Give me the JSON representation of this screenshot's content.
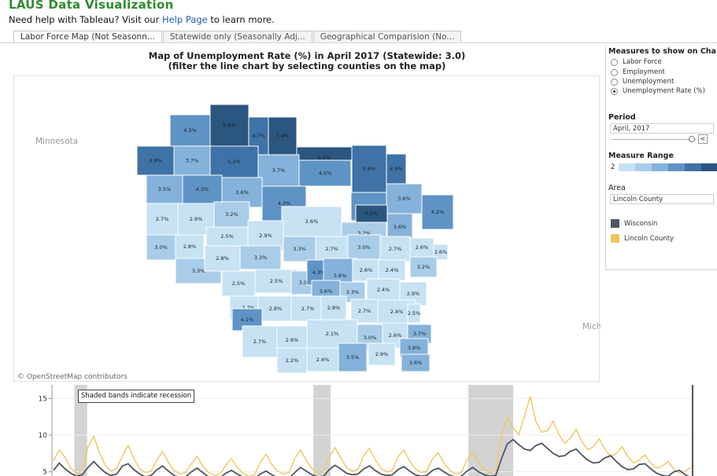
{
  "header": {
    "title": "LAUS Data Visualization",
    "help_prefix": "Need help with Tableau? Visit our",
    "help_link": "Help Page",
    "help_suffix": "to learn more."
  },
  "tabs": [
    {
      "label": "Labor Force Map (Not Seasonn...",
      "active": true
    },
    {
      "label": "Statewide only (Seasonally Adj...",
      "active": false
    },
    {
      "label": "Geographical Comparision (No...",
      "active": false
    }
  ],
  "map": {
    "title_line1": "Map of Unemployment Rate (%) in April 2017 (Statewide: 3.0)",
    "title_line2": "(filter the line chart by selecting counties on the map)",
    "label_minnesota": "Minnesota",
    "label_michigan": "Mich",
    "attribution": "© OpenStreetMap contributors",
    "county_values": [
      "4.3%",
      "6.8%",
      "4.7%",
      "7.4%",
      "6.4%",
      "5.6%",
      "4.9%",
      "4.9%",
      "3.7%",
      "5.1%",
      "3.7%",
      "4.0%",
      "4.3%",
      "3.6%",
      "3.5%",
      "4.3%",
      "3.6%",
      "4.3%",
      "2.7%",
      "2.9%",
      "3.2%",
      "2.6%",
      "6.5%",
      "3.6%",
      "4.2%",
      "3.0%",
      "2.8%",
      "2.5%",
      "2.9%",
      "3.2%",
      "3.3%",
      "2.8%",
      "3.3%",
      "3.3%",
      "2.7%",
      "3.0%",
      "2.7%",
      "2.6%",
      "2.6%",
      "2.5%",
      "2.5%",
      "3.0%",
      "4.3%",
      "3.6%",
      "2.6%",
      "2.4%",
      "3.2%",
      "3.6%",
      "3.3%",
      "2.4%",
      "2.9%",
      "2.7%",
      "2.8%",
      "2.7%",
      "2.8%",
      "2.7%",
      "2.4%",
      "2.5%",
      "4.1%",
      "2.1%",
      "2.6%",
      "3.0%",
      "2.6%",
      "3.7%",
      "2.7%",
      "2.2%",
      "2.4%",
      "3.5%",
      "2.9%",
      "3.8%",
      "3.6%"
    ],
    "color_scale": [
      "#c6e2f3",
      "#a9cde8",
      "#84b2da",
      "#5f93c6",
      "#3f72a6",
      "#2b567f"
    ]
  },
  "panel": {
    "measures_title": "Measures to show on Cha",
    "measures": [
      {
        "label": "Labor Force",
        "selected": false
      },
      {
        "label": "Employment",
        "selected": false
      },
      {
        "label": "Unemployment",
        "selected": false
      },
      {
        "label": "Unemployment Rate (%)",
        "selected": true
      }
    ],
    "period_title": "Period",
    "period_value": "April, 2017",
    "slider_btn": "<",
    "range_title": "Measure Range",
    "range_min": "2",
    "area_title": "Area",
    "area_value": "Lincoln County",
    "legend": [
      {
        "label": "Wisconsin",
        "color": "#4d5563"
      },
      {
        "label": "Lincoln County",
        "color": "#f0c75e"
      }
    ]
  },
  "chart_data": {
    "type": "line",
    "ylabel": "",
    "yticks": [
      15,
      10,
      5
    ],
    "ylim": [
      4,
      16
    ],
    "annotation": "Shaded bands indicate recession",
    "recession_bands": [
      [
        0.035,
        0.055
      ],
      [
        0.408,
        0.435
      ],
      [
        0.65,
        0.72
      ]
    ],
    "series": [
      {
        "name": "Wisconsin",
        "color": "#4d5563",
        "values": [
          5.2,
          6.2,
          5.4,
          4.8,
          4.4,
          4.6,
          5.6,
          6.4,
          5.6,
          4.9,
          4.5,
          4.7,
          5.8,
          6.1,
          5.3,
          4.7,
          4.3,
          4.5,
          5.3,
          5.8,
          5.1,
          4.5,
          4.2,
          4.3,
          5.0,
          5.5,
          4.9,
          4.3,
          4.1,
          4.2,
          4.8,
          5.2,
          4.7,
          4.3,
          4.0,
          4.1,
          4.7,
          5.1,
          4.6,
          4.2,
          4.0,
          4.1,
          4.9,
          5.6,
          5.1,
          4.6,
          4.3,
          4.4,
          5.3,
          5.9,
          5.4,
          4.8,
          4.6,
          4.7,
          5.4,
          5.8,
          5.2,
          4.7,
          4.5,
          4.6,
          5.3,
          5.7,
          5.1,
          4.6,
          4.4,
          4.5,
          5.2,
          5.5,
          5.0,
          4.5,
          4.3,
          4.4,
          5.1,
          5.6,
          5.0,
          4.6,
          4.4,
          4.5,
          6.8,
          8.8,
          9.4,
          8.7,
          8.1,
          7.9,
          8.6,
          8.9,
          8.2,
          7.5,
          7.1,
          7.2,
          7.8,
          8.1,
          7.3,
          6.6,
          6.2,
          6.3,
          6.9,
          7.2,
          6.4,
          5.7,
          5.3,
          5.4,
          6.0,
          6.1,
          5.4,
          4.8,
          4.5,
          4.4,
          5.0,
          5.2,
          4.6,
          4.2
        ]
      },
      {
        "name": "Lincoln County",
        "color": "#f0c75e",
        "values": [
          6.5,
          8.0,
          7.0,
          5.5,
          4.8,
          5.2,
          8.4,
          9.8,
          7.6,
          5.9,
          5.1,
          5.5,
          7.2,
          8.6,
          6.8,
          5.4,
          4.9,
          5.1,
          6.6,
          7.8,
          6.3,
          5.2,
          4.7,
          4.9,
          6.1,
          7.1,
          5.8,
          4.9,
          4.5,
          4.7,
          5.9,
          6.8,
          5.6,
          4.8,
          4.4,
          4.6,
          6.3,
          7.4,
          6.0,
          5.1,
          4.7,
          4.9,
          6.8,
          8.0,
          6.6,
          5.4,
          4.9,
          5.1,
          7.0,
          8.3,
          6.9,
          5.6,
          5.1,
          5.3,
          7.2,
          8.2,
          6.7,
          5.5,
          5.0,
          5.2,
          7.1,
          8.0,
          6.5,
          5.4,
          4.9,
          5.1,
          6.8,
          7.6,
          6.2,
          5.2,
          4.7,
          4.9,
          6.6,
          7.7,
          6.3,
          5.3,
          4.9,
          5.1,
          9.8,
          12.4,
          11.0,
          10.1,
          12.6,
          15.3,
          11.8,
          10.4,
          10.6,
          11.9,
          10.1,
          8.9,
          9.6,
          10.8,
          9.1,
          8.0,
          8.4,
          9.5,
          8.1,
          7.1,
          7.5,
          8.4,
          7.1,
          6.2,
          6.6,
          7.3,
          6.2,
          5.5,
          5.8,
          6.4,
          5.4,
          4.8,
          5.1,
          5.6
        ]
      }
    ]
  }
}
